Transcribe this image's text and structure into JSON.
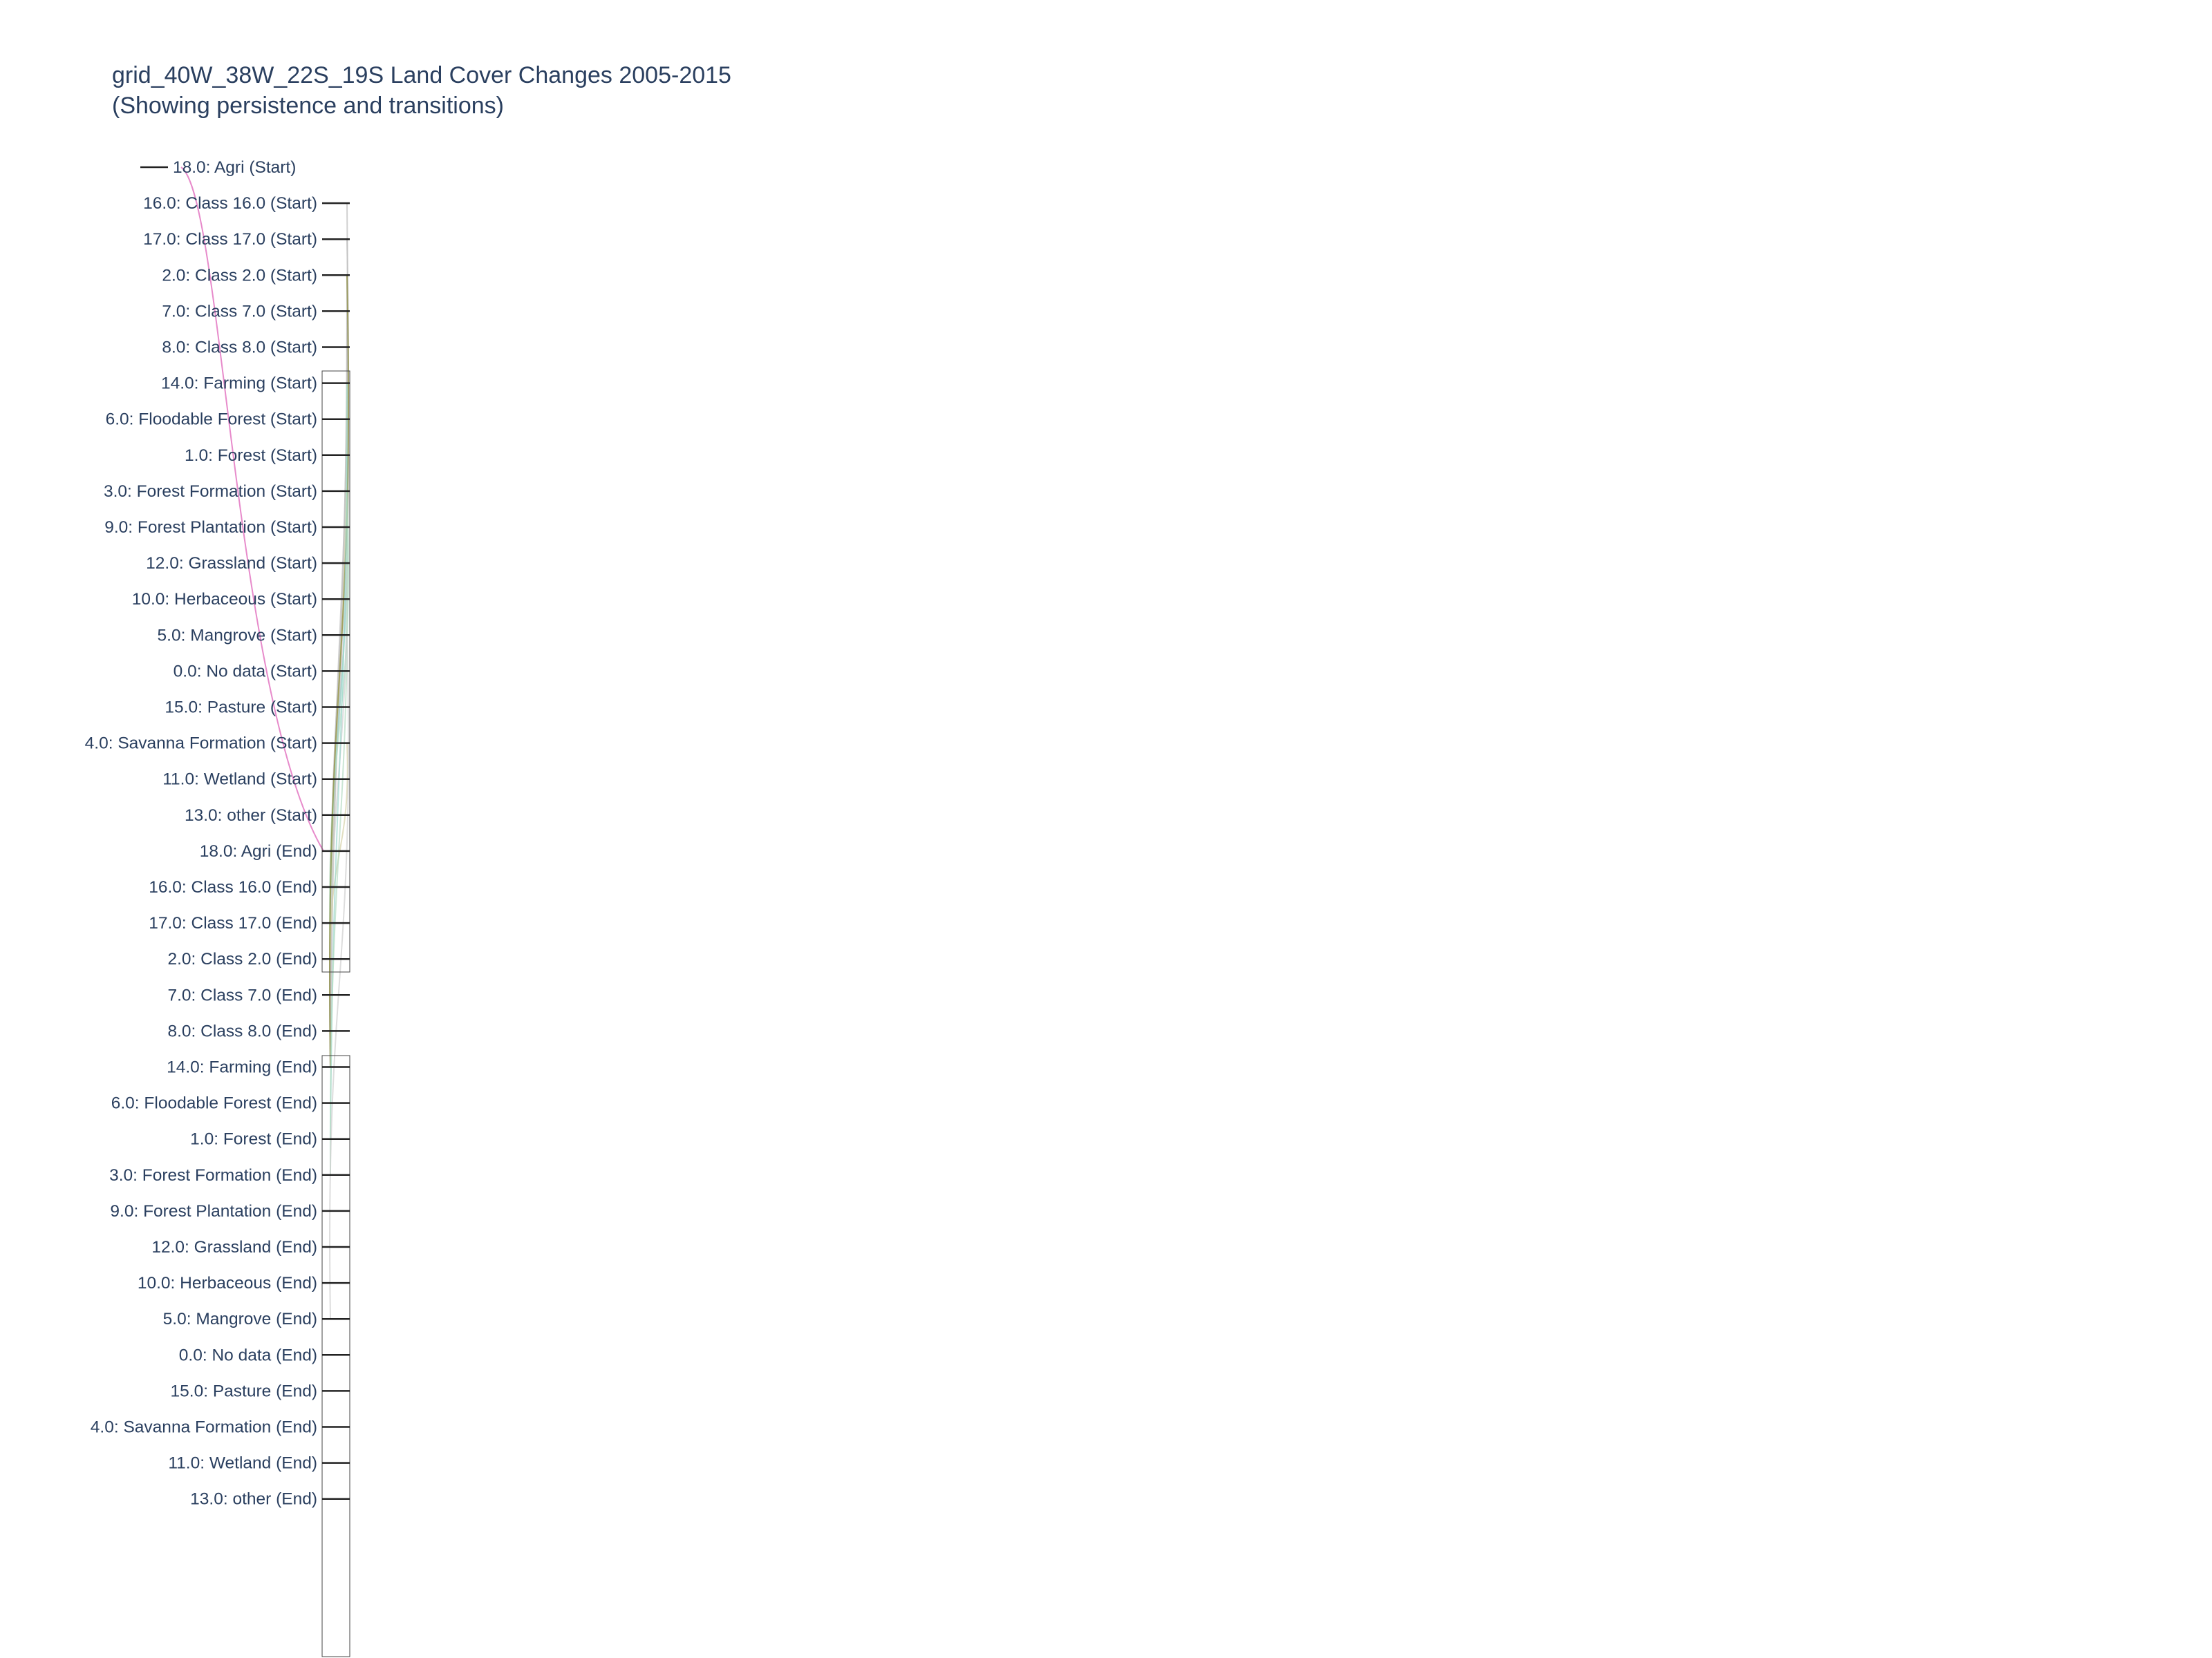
{
  "chart_data": {
    "type": "sankey",
    "title": "grid_40W_38W_22S_19S Land Cover Changes 2005-2015",
    "subtitle": "(Showing persistence and transitions)",
    "nodes": [
      "18.0: Agri (Start)",
      "16.0: Class 16.0 (Start)",
      "17.0: Class 17.0 (Start)",
      "2.0: Class 2.0 (Start)",
      "7.0: Class 7.0 (Start)",
      "8.0: Class 8.0 (Start)",
      "14.0: Farming (Start)",
      "6.0: Floodable Forest (Start)",
      "1.0: Forest (Start)",
      "3.0: Forest Formation (Start)",
      "9.0: Forest Plantation (Start)",
      "12.0: Grassland (Start)",
      "10.0: Herbaceous (Start)",
      "5.0: Mangrove (Start)",
      "0.0: No data (Start)",
      "15.0: Pasture (Start)",
      "4.0: Savanna Formation (Start)",
      "11.0: Wetland (Start)",
      "13.0: other (Start)",
      "18.0: Agri (End)",
      "16.0: Class 16.0 (End)",
      "17.0: Class 17.0 (End)",
      "2.0: Class 2.0 (End)",
      "7.0: Class 7.0 (End)",
      "8.0: Class 8.0 (End)",
      "14.0: Farming (End)",
      "6.0: Floodable Forest (End)",
      "1.0: Forest (End)",
      "3.0: Forest Formation (End)",
      "9.0: Forest Plantation (End)",
      "12.0: Grassland (End)",
      "10.0: Herbaceous (End)",
      "5.0: Mangrove (End)",
      "0.0: No data (End)",
      "15.0: Pasture (End)",
      "4.0: Savanna Formation (End)",
      "11.0: Wetland (End)",
      "13.0: other (End)"
    ],
    "links": [
      {
        "source": "18.0: Agri (Start)",
        "target": "18.0: Agri (End)",
        "color": "#e377c2"
      },
      {
        "source": "16.0: Class 16.0 (Start)",
        "target": "14.0: Farming (End)",
        "color": "#bdbdbd"
      },
      {
        "source": "17.0: Class 17.0 (Start)",
        "target": "14.0: Farming (End)",
        "color": "#bdbdbd"
      },
      {
        "source": "2.0: Class 2.0 (Start)",
        "target": "14.0: Farming (End)",
        "color": "#bdbdbd"
      },
      {
        "source": "7.0: Class 7.0 (Start)",
        "target": "14.0: Farming (End)",
        "color": "#bdbdbd"
      },
      {
        "source": "8.0: Class 8.0 (Start)",
        "target": "14.0: Farming (End)",
        "color": "#bdbdbd"
      },
      {
        "source": "14.0: Farming (Start)",
        "target": "2.0: Class 2.0 (End)",
        "color": "#d8d6b0"
      },
      {
        "source": "1.0: Forest (Start)",
        "target": "2.0: Class 2.0 (End)",
        "color": "#9ed9cf"
      },
      {
        "source": "3.0: Forest Formation (Start)",
        "target": "2.0: Class 2.0 (End)",
        "color": "#b5dcc3"
      },
      {
        "source": "12.0: Grassland (Start)",
        "target": "2.0: Class 2.0 (End)",
        "color": "#cfcfcf"
      },
      {
        "source": "4.0: Savanna Formation (Start)",
        "target": "2.0: Class 2.0 (End)",
        "color": "#d6d2a8"
      },
      {
        "source": "2.0: Class 2.0 (Start)",
        "target": "14.0: Farming (End)",
        "color": "#8c8c3a"
      },
      {
        "source": "14.0: Farming (Start)",
        "target": "1.0: Forest (End)",
        "color": "#9ed9cf"
      },
      {
        "source": "3.0: Forest Formation (Start)",
        "target": "3.0: Forest Formation (End)",
        "color": "#b5dcc3"
      },
      {
        "source": "5.0: Mangrove (Start)",
        "target": "5.0: Mangrove (End)",
        "color": "#cfcfcf"
      }
    ]
  }
}
